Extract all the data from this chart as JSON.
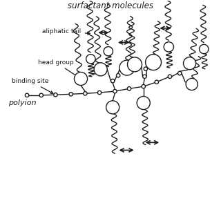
{
  "title": "surfactant molecules",
  "labels": {
    "aliphatic_tail": "aliphatic tail",
    "head_group": "head group",
    "binding_site": "binding site",
    "polyion": "polyion"
  },
  "bg_color": "#ffffff",
  "line_color": "#1a1a1a",
  "figsize": [
    3.2,
    3.2
  ],
  "dpi": 100,
  "head_r": 0.3,
  "small_r": 0.085,
  "lw": 1.0,
  "n_waves": 5,
  "amplitude": 0.12
}
